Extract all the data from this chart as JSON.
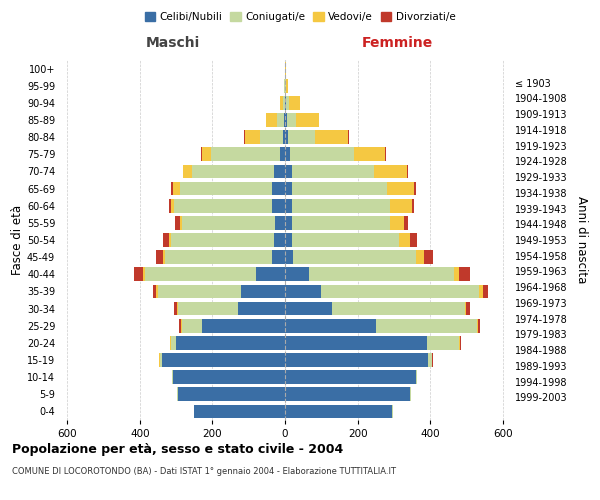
{
  "age_groups": [
    "0-4",
    "5-9",
    "10-14",
    "15-19",
    "20-24",
    "25-29",
    "30-34",
    "35-39",
    "40-44",
    "45-49",
    "50-54",
    "55-59",
    "60-64",
    "65-69",
    "70-74",
    "75-79",
    "80-84",
    "85-89",
    "90-94",
    "95-99",
    "100+"
  ],
  "birth_years": [
    "1999-2003",
    "1994-1998",
    "1989-1993",
    "1984-1988",
    "1979-1983",
    "1974-1978",
    "1969-1973",
    "1964-1968",
    "1959-1963",
    "1954-1958",
    "1949-1953",
    "1944-1948",
    "1939-1943",
    "1934-1938",
    "1929-1933",
    "1924-1928",
    "1919-1923",
    "1914-1918",
    "1909-1913",
    "1904-1908",
    "≤ 1903"
  ],
  "males": {
    "celibi": [
      250,
      295,
      310,
      340,
      300,
      230,
      130,
      120,
      80,
      35,
      30,
      28,
      35,
      35,
      30,
      15,
      5,
      2,
      1,
      0,
      0
    ],
    "coniugati": [
      2,
      2,
      2,
      5,
      15,
      55,
      165,
      230,
      305,
      295,
      285,
      255,
      270,
      255,
      225,
      190,
      65,
      20,
      5,
      2,
      0
    ],
    "vedovi": [
      0,
      0,
      0,
      1,
      1,
      2,
      2,
      5,
      5,
      5,
      5,
      5,
      10,
      20,
      25,
      25,
      40,
      30,
      8,
      2,
      0
    ],
    "divorziati": [
      0,
      0,
      0,
      1,
      2,
      5,
      8,
      10,
      25,
      20,
      15,
      15,
      5,
      3,
      2,
      2,
      2,
      0,
      0,
      0,
      0
    ]
  },
  "females": {
    "nubili": [
      295,
      345,
      360,
      395,
      390,
      250,
      130,
      100,
      65,
      22,
      20,
      18,
      20,
      20,
      20,
      15,
      8,
      5,
      2,
      0,
      0
    ],
    "coniugate": [
      2,
      3,
      5,
      10,
      90,
      280,
      365,
      435,
      400,
      340,
      295,
      270,
      270,
      260,
      225,
      175,
      75,
      25,
      8,
      2,
      0
    ],
    "vedove": [
      0,
      0,
      0,
      1,
      2,
      3,
      5,
      10,
      15,
      20,
      30,
      40,
      60,
      75,
      90,
      85,
      90,
      65,
      30,
      5,
      2
    ],
    "divorziate": [
      0,
      0,
      0,
      1,
      2,
      5,
      10,
      15,
      30,
      25,
      20,
      10,
      5,
      5,
      5,
      2,
      2,
      0,
      0,
      0,
      0
    ]
  },
  "colors": {
    "celibi": "#3a6ea5",
    "coniugati": "#c5d9a0",
    "vedovi": "#f5c842",
    "divorziati": "#c0392b"
  },
  "xlim": 620,
  "title": "Popolazione per età, sesso e stato civile - 2004",
  "subtitle": "COMUNE DI LOCOROTONDO (BA) - Dati ISTAT 1° gennaio 2004 - Elaborazione TUTTITALIA.IT",
  "ylabel": "Fasce di età",
  "ylabel_right": "Anni di nascita",
  "xlabel_left": "Maschi",
  "xlabel_right": "Femmine",
  "bg_color": "#ffffff",
  "grid_color": "#cccccc"
}
